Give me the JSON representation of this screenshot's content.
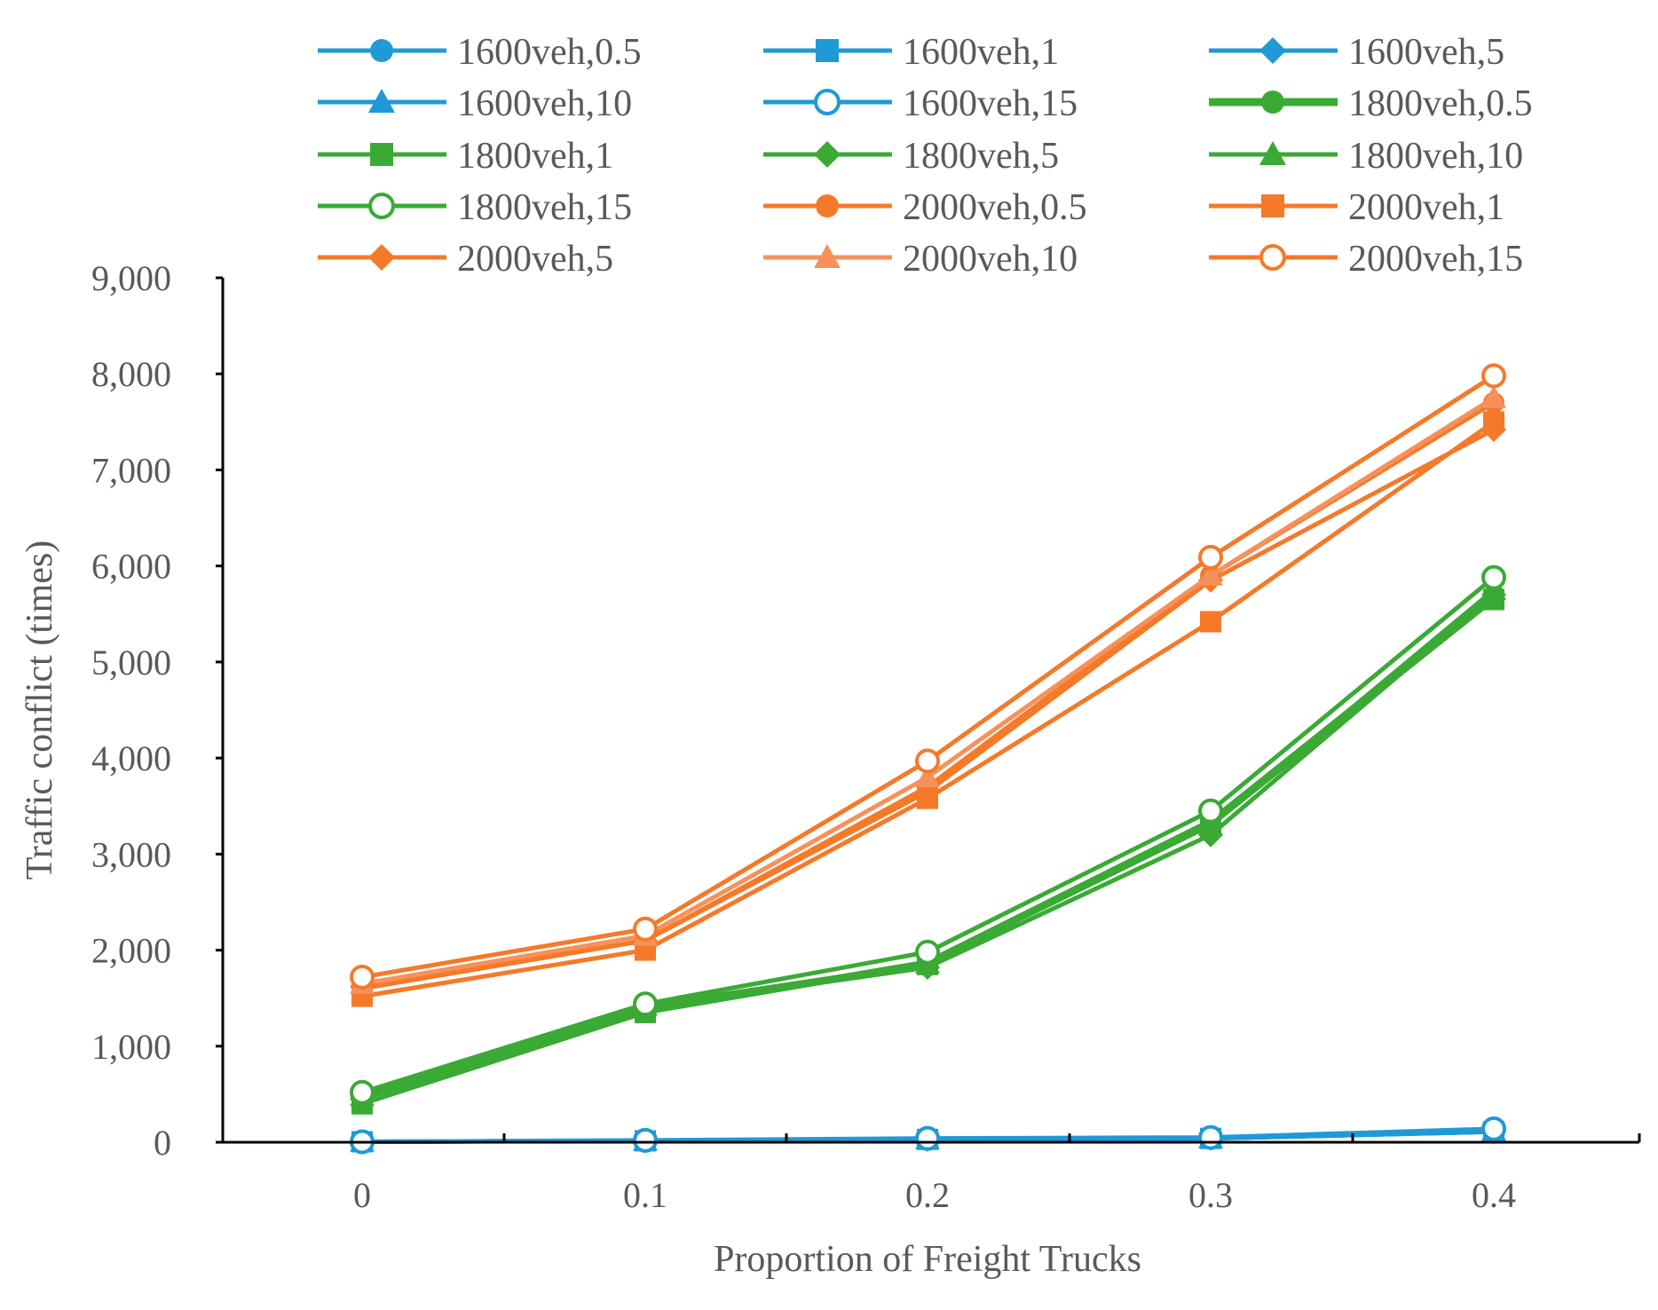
{
  "chart_data": {
    "type": "line",
    "title": "",
    "xlabel": "Proportion of Freight  Trucks",
    "ylabel": "Traffic conflict (times)",
    "x": [
      0,
      0.1,
      0.2,
      0.3,
      0.4
    ],
    "xtick_labels": [
      "0",
      "0.1",
      "0.2",
      "0.3",
      "0.4"
    ],
    "ytick_labels": [
      "0",
      "1,000",
      "2,000",
      "3,000",
      "4,000",
      "5,000",
      "6,000",
      "7,000",
      "8,000",
      "9,000"
    ],
    "ylim": [
      0,
      9000
    ],
    "legend_position": "top",
    "series": [
      {
        "name": "1600veh,0.5",
        "color": "#1f9ad6",
        "marker": "circle",
        "values": [
          5,
          15,
          30,
          40,
          110
        ]
      },
      {
        "name": "1600veh,1",
        "color": "#1f9ad6",
        "marker": "square",
        "values": [
          5,
          15,
          30,
          40,
          110
        ]
      },
      {
        "name": "1600veh,5",
        "color": "#1f9ad6",
        "marker": "diamond",
        "values": [
          5,
          15,
          30,
          40,
          110
        ]
      },
      {
        "name": "1600veh,10",
        "color": "#1f9ad6",
        "marker": "triangle",
        "values": [
          5,
          15,
          30,
          40,
          120
        ]
      },
      {
        "name": "1600veh,15",
        "color": "#1f9ad6",
        "marker": "circle-open",
        "values": [
          5,
          20,
          40,
          50,
          140
        ]
      },
      {
        "name": "1800veh,0.5",
        "color": "#3aaa35",
        "marker": "circle",
        "values": [
          450,
          1380,
          1880,
          3350,
          5700
        ]
      },
      {
        "name": "1800veh,1",
        "color": "#3aaa35",
        "marker": "square",
        "values": [
          400,
          1350,
          1850,
          3300,
          5650
        ]
      },
      {
        "name": "1800veh,5",
        "color": "#3aaa35",
        "marker": "diamond",
        "values": [
          450,
          1400,
          1820,
          3200,
          5700
        ]
      },
      {
        "name": "1800veh,10",
        "color": "#3aaa35",
        "marker": "triangle",
        "values": [
          480,
          1420,
          1860,
          3300,
          5750
        ]
      },
      {
        "name": "1800veh,15",
        "color": "#3aaa35",
        "marker": "circle-open",
        "values": [
          520,
          1440,
          1980,
          3450,
          5880
        ]
      },
      {
        "name": "2000veh,0.5",
        "color": "#f47a2a",
        "marker": "circle",
        "values": [
          1600,
          2100,
          3700,
          5900,
          7700
        ]
      },
      {
        "name": "2000veh,1",
        "color": "#f47a2a",
        "marker": "square",
        "values": [
          1520,
          2000,
          3580,
          5420,
          7500
        ]
      },
      {
        "name": "2000veh,5",
        "color": "#f47a2a",
        "marker": "diamond",
        "values": [
          1620,
          2100,
          3650,
          5850,
          7420
        ]
      },
      {
        "name": "2000veh,10",
        "color": "#f7915a",
        "marker": "triangle",
        "values": [
          1650,
          2150,
          3800,
          5900,
          7750
        ]
      },
      {
        "name": "2000veh,15",
        "color": "#f47a2a",
        "marker": "circle-open",
        "values": [
          1720,
          2220,
          3970,
          6090,
          7980
        ]
      }
    ]
  }
}
